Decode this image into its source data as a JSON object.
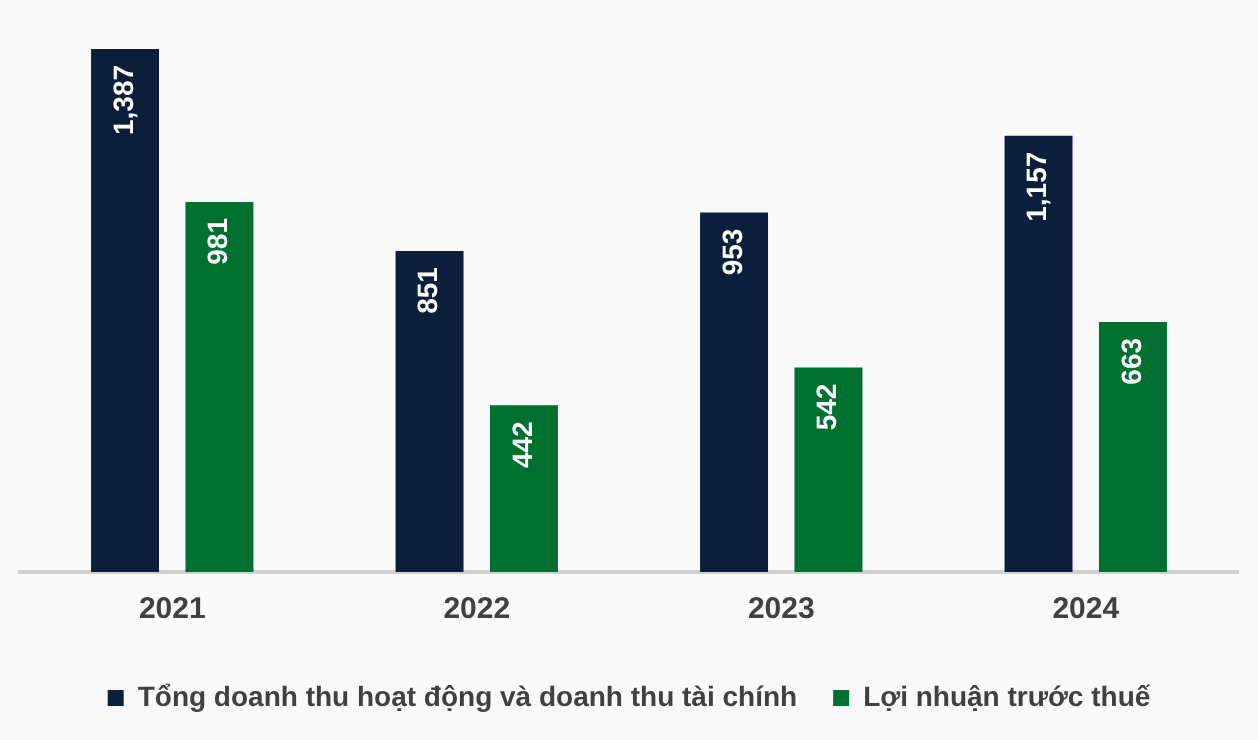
{
  "chart_data": {
    "type": "bar",
    "categories": [
      "2021",
      "2022",
      "2023",
      "2024"
    ],
    "series": [
      {
        "name": "Tổng doanh thu hoạt động và doanh thu tài chính",
        "color": "#0c1f3a",
        "values": [
          1387,
          851,
          953,
          1157
        ],
        "value_labels": [
          "1,387",
          "851",
          "953",
          "1,157"
        ]
      },
      {
        "name": "Lợi nhuận trước thuế",
        "color": "#007030",
        "values": [
          981,
          442,
          542,
          663
        ],
        "value_labels": [
          "981",
          "442",
          "542",
          "663"
        ]
      }
    ],
    "legend": "bottom",
    "grid": false
  }
}
